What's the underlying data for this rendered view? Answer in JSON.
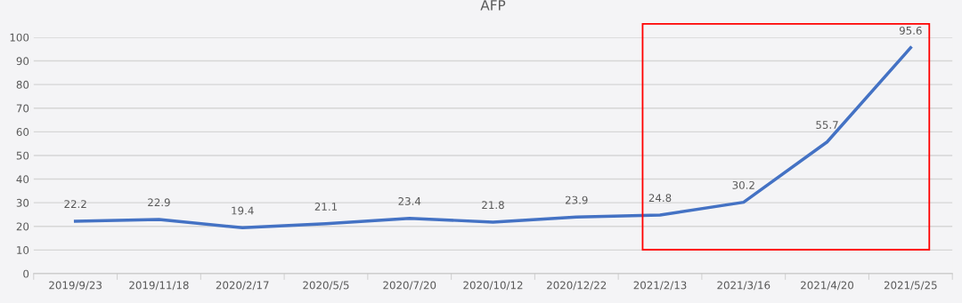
{
  "chart_data": {
    "type": "line",
    "title": "AFP",
    "categories": [
      "2019/9/23",
      "2019/11/18",
      "2020/2/17",
      "2020/5/5",
      "2020/7/20",
      "2020/10/12",
      "2020/12/22",
      "2021/2/13",
      "2021/3/16",
      "2021/4/20",
      "2021/5/25"
    ],
    "series": [
      {
        "color": "#4472c4",
        "values": [
          22.2,
          22.9,
          19.4,
          21.1,
          23.4,
          21.8,
          23.9,
          24.8,
          30.2,
          55.7,
          95.6
        ]
      }
    ],
    "ylim": [
      0,
      100
    ],
    "yticks": [
      0,
      10,
      20,
      30,
      40,
      50,
      60,
      70,
      80,
      90,
      100
    ],
    "grid": "y",
    "data_labels": true,
    "marker": "none",
    "line_style": "solid",
    "legend": false
  }
}
